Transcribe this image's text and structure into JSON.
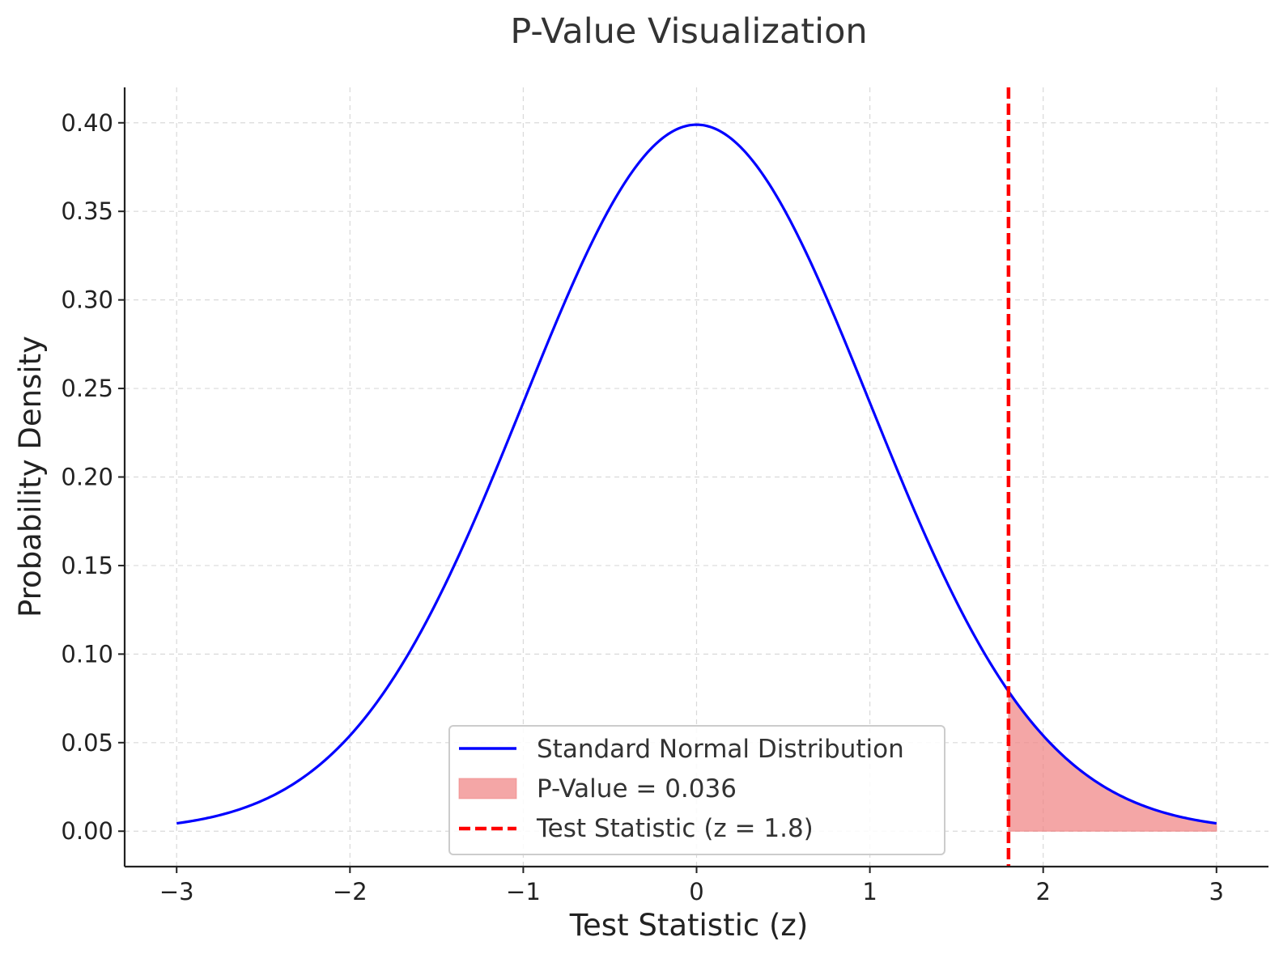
{
  "chart_data": {
    "type": "area",
    "title": "P-Value Visualization",
    "xlabel": "Test Statistic (z)",
    "ylabel": "Probability Density",
    "xlim": [
      -3.3,
      3.3
    ],
    "ylim": [
      -0.02,
      0.42
    ],
    "x_ticks": [
      -3,
      -2,
      -1,
      0,
      1,
      2,
      3
    ],
    "x_tick_labels": [
      "−3",
      "−2",
      "−1",
      "0",
      "1",
      "2",
      "3"
    ],
    "y_ticks": [
      0.0,
      0.05,
      0.1,
      0.15,
      0.2,
      0.25,
      0.3,
      0.35,
      0.4
    ],
    "y_tick_labels": [
      "0.00",
      "0.05",
      "0.10",
      "0.15",
      "0.20",
      "0.25",
      "0.30",
      "0.35",
      "0.40"
    ],
    "grid": true,
    "legend_position": "lower-center",
    "series": [
      {
        "name": "Standard Normal Distribution",
        "kind": "line",
        "color": "#0000ff",
        "function": "standard normal pdf",
        "x_range": [
          -3,
          3
        ],
        "points": [
          {
            "x": -3.0,
            "y": 0.0044
          },
          {
            "x": -2.0,
            "y": 0.054
          },
          {
            "x": -1.0,
            "y": 0.242
          },
          {
            "x": 0.0,
            "y": 0.3989
          },
          {
            "x": 1.0,
            "y": 0.242
          },
          {
            "x": 1.8,
            "y": 0.079
          },
          {
            "x": 2.0,
            "y": 0.054
          },
          {
            "x": 3.0,
            "y": 0.0044
          }
        ]
      },
      {
        "name": "P-Value = 0.036",
        "kind": "fill",
        "color": "#f08080",
        "opacity": 0.7,
        "x_range": [
          1.8,
          3.0
        ]
      },
      {
        "name": "Test Statistic (z = 1.8)",
        "kind": "vline",
        "color": "#ff0000",
        "linestyle": "dashed",
        "x": 1.8
      }
    ]
  }
}
